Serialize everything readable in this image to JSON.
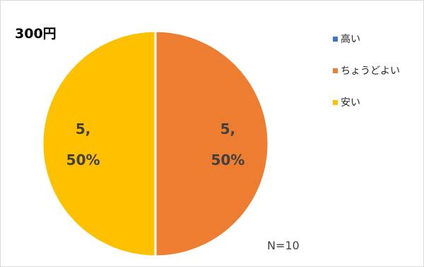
{
  "chart_data": {
    "type": "pie",
    "title": "300円",
    "categories": [
      "高い",
      "ちょうどよい",
      "安い"
    ],
    "values": [
      0,
      5,
      5
    ],
    "percentages": [
      "0%",
      "50%",
      "50%"
    ],
    "colors": [
      "#4472c4",
      "#ed7d31",
      "#ffc000"
    ],
    "legend_position": "right",
    "annotation": "N=10"
  }
}
